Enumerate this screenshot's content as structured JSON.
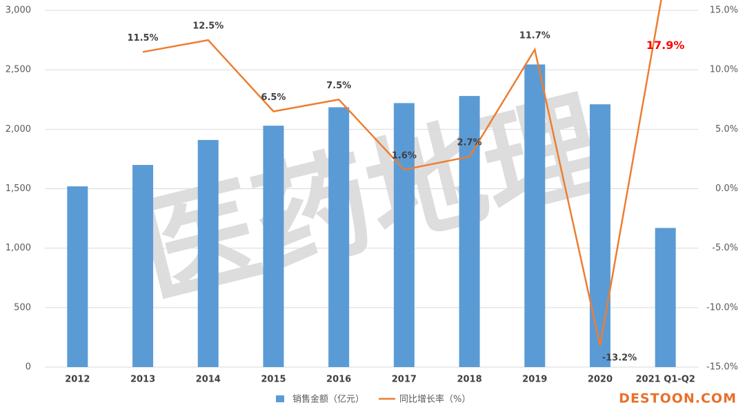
{
  "chart_data": {
    "type": "bar_line",
    "categories": [
      "2012",
      "2013",
      "2014",
      "2015",
      "2016",
      "2017",
      "2018",
      "2019",
      "2020",
      "2021 Q1-Q2"
    ],
    "series": [
      {
        "name": "销售金额（亿元）",
        "color": "#5b9bd5",
        "type": "bar",
        "values": [
          1520,
          1700,
          1910,
          2030,
          2185,
          2220,
          2280,
          2545,
          2210,
          1170
        ]
      },
      {
        "name": "同比增长率（%）",
        "color": "#ed7d31",
        "type": "line",
        "axis": "y2",
        "values": [
          null,
          11.5,
          12.5,
          6.5,
          7.5,
          1.6,
          2.7,
          11.7,
          -13.2,
          17.9
        ],
        "value_labels": [
          null,
          "11.5%",
          "12.5%",
          "6.5%",
          "7.5%",
          "1.6%",
          "2.7%",
          "11.7%",
          "-13.2%",
          "17.9%"
        ]
      }
    ],
    "ylim": [
      0,
      3000
    ],
    "yticks": [
      0,
      500,
      {
        "value": 1000,
        "label": "1,000"
      },
      {
        "value": 1500,
        "label": "1,500"
      },
      {
        "value": 2000,
        "label": "2,000"
      },
      {
        "value": 2500,
        "label": "2,500"
      },
      {
        "value": 3000,
        "label": "3,000"
      }
    ],
    "y2lim": [
      -15,
      15
    ],
    "y2ticks": [
      {
        "value": -15,
        "label": "-15.0%"
      },
      {
        "value": -10,
        "label": "-10.0%"
      },
      {
        "value": -5,
        "label": "-5.0%"
      },
      {
        "value": 0,
        "label": "0.0%"
      },
      {
        "value": 5,
        "label": "5.0%"
      },
      {
        "value": 10,
        "label": "10.0%"
      },
      {
        "value": 15,
        "label": "15.0%"
      }
    ],
    "grid": true,
    "legend": "bottom"
  },
  "watermark": "医药地理",
  "brand": "DESTOON.COM"
}
